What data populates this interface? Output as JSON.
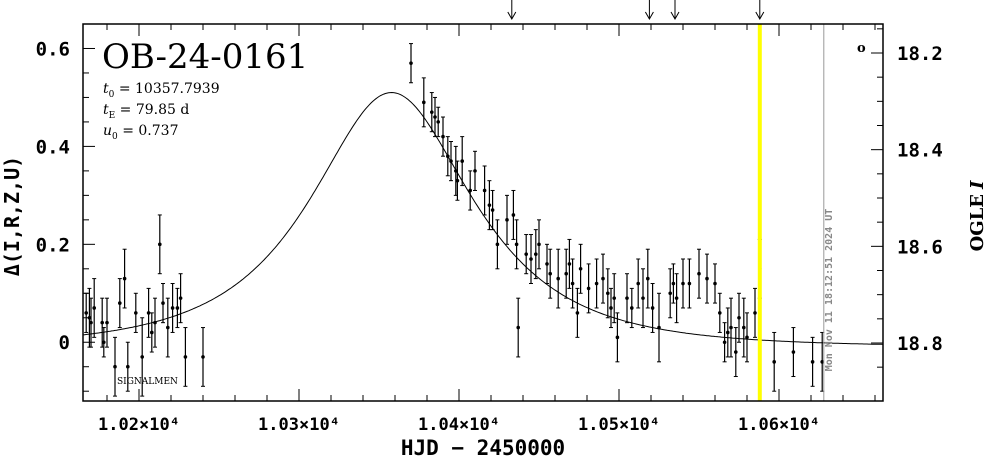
{
  "chart_data": {
    "type": "scatter",
    "title": "OB-24-0161",
    "params": [
      {
        "sym": "t",
        "sub": "0",
        "text": " = 10357.7939"
      },
      {
        "sym": "t",
        "sub": "E",
        "text": " = 79.85 d"
      },
      {
        "sym": "u",
        "sub": "0",
        "text": " = 0.737"
      }
    ],
    "xlabel": "HJD − 2450000",
    "ylabel": "Δ(I,R,Z,U)",
    "ylabel_right": "OGLE",
    "ylabel_right_italic": "I",
    "xlim": [
      10165,
      10665
    ],
    "ylim": [
      -0.12,
      0.65
    ],
    "y2lim": [
      18.92,
      18.14
    ],
    "xticks": [
      10200,
      10300,
      10400,
      10500,
      10600
    ],
    "xtick_labels": [
      "1.02×10⁴",
      "1.03×10⁴",
      "1.04×10⁴",
      "1.05×10⁴",
      "1.06×10⁴"
    ],
    "yticks": [
      0,
      0.2,
      0.4,
      0.6
    ],
    "ytick_labels": [
      "0",
      "0.2",
      "0.4",
      "0.6"
    ],
    "y2ticks": [
      18.2,
      18.4,
      18.6,
      18.8
    ],
    "y2tick_labels": [
      "18.2",
      "18.4",
      "18.6",
      "18.8"
    ],
    "model": {
      "t0": 10357.7939,
      "tE": 79.85,
      "u0": 0.737,
      "baseline_offset": 0.0
    },
    "now_line_x": 10588,
    "now_line_color": "#ffff00",
    "date_line_x": 10628,
    "date_text": "Mon Nov 11 18:12:51 2024 UT",
    "arrows_x": [
      10433,
      10519,
      10535,
      10588
    ],
    "watermark": "SIGNALMEN",
    "corner_mark": "o",
    "points": [
      {
        "x": 10167,
        "y": 0.06,
        "e": 0.04
      },
      {
        "x": 10169,
        "y": 0.05,
        "e": 0.06
      },
      {
        "x": 10170,
        "y": 0.04,
        "e": 0.05
      },
      {
        "x": 10172,
        "y": 0.07,
        "e": 0.06
      },
      {
        "x": 10177,
        "y": 0.04,
        "e": 0.05
      },
      {
        "x": 10178,
        "y": 0.0,
        "e": 0.03
      },
      {
        "x": 10180,
        "y": 0.04,
        "e": 0.05
      },
      {
        "x": 10185,
        "y": -0.05,
        "e": 0.06
      },
      {
        "x": 10188,
        "y": 0.08,
        "e": 0.05
      },
      {
        "x": 10191,
        "y": 0.13,
        "e": 0.06
      },
      {
        "x": 10193,
        "y": -0.05,
        "e": 0.05
      },
      {
        "x": 10198,
        "y": 0.06,
        "e": 0.04
      },
      {
        "x": 10202,
        "y": -0.03,
        "e": 0.08
      },
      {
        "x": 10206,
        "y": 0.06,
        "e": 0.05
      },
      {
        "x": 10208,
        "y": 0.02,
        "e": 0.04
      },
      {
        "x": 10210,
        "y": 0.04,
        "e": 0.05
      },
      {
        "x": 10213,
        "y": 0.2,
        "e": 0.06
      },
      {
        "x": 10215,
        "y": 0.08,
        "e": 0.04
      },
      {
        "x": 10218,
        "y": 0.03,
        "e": 0.06
      },
      {
        "x": 10221,
        "y": 0.07,
        "e": 0.05
      },
      {
        "x": 10224,
        "y": 0.07,
        "e": 0.04
      },
      {
        "x": 10226,
        "y": 0.09,
        "e": 0.05
      },
      {
        "x": 10229,
        "y": -0.03,
        "e": 0.06
      },
      {
        "x": 10240,
        "y": -0.03,
        "e": 0.06
      },
      {
        "x": 10370,
        "y": 0.57,
        "e": 0.04
      },
      {
        "x": 10378,
        "y": 0.49,
        "e": 0.05
      },
      {
        "x": 10383,
        "y": 0.47,
        "e": 0.04
      },
      {
        "x": 10385,
        "y": 0.46,
        "e": 0.04
      },
      {
        "x": 10387,
        "y": 0.45,
        "e": 0.03
      },
      {
        "x": 10390,
        "y": 0.42,
        "e": 0.04
      },
      {
        "x": 10393,
        "y": 0.38,
        "e": 0.04
      },
      {
        "x": 10395,
        "y": 0.37,
        "e": 0.04
      },
      {
        "x": 10398,
        "y": 0.35,
        "e": 0.05
      },
      {
        "x": 10399,
        "y": 0.33,
        "e": 0.04
      },
      {
        "x": 10402,
        "y": 0.37,
        "e": 0.05
      },
      {
        "x": 10407,
        "y": 0.31,
        "e": 0.04
      },
      {
        "x": 10410,
        "y": 0.35,
        "e": 0.04
      },
      {
        "x": 10416,
        "y": 0.31,
        "e": 0.05
      },
      {
        "x": 10419,
        "y": 0.28,
        "e": 0.05
      },
      {
        "x": 10421,
        "y": 0.27,
        "e": 0.04
      },
      {
        "x": 10424,
        "y": 0.2,
        "e": 0.05
      },
      {
        "x": 10430,
        "y": 0.25,
        "e": 0.05
      },
      {
        "x": 10434,
        "y": 0.26,
        "e": 0.05
      },
      {
        "x": 10436,
        "y": 0.2,
        "e": 0.05
      },
      {
        "x": 10437,
        "y": 0.03,
        "e": 0.06
      },
      {
        "x": 10442,
        "y": 0.18,
        "e": 0.04
      },
      {
        "x": 10445,
        "y": 0.17,
        "e": 0.05
      },
      {
        "x": 10448,
        "y": 0.18,
        "e": 0.05
      },
      {
        "x": 10450,
        "y": 0.2,
        "e": 0.05
      },
      {
        "x": 10455,
        "y": 0.16,
        "e": 0.04
      },
      {
        "x": 10457,
        "y": 0.14,
        "e": 0.05
      },
      {
        "x": 10462,
        "y": 0.13,
        "e": 0.06
      },
      {
        "x": 10467,
        "y": 0.14,
        "e": 0.05
      },
      {
        "x": 10469,
        "y": 0.16,
        "e": 0.05
      },
      {
        "x": 10471,
        "y": 0.12,
        "e": 0.05
      },
      {
        "x": 10474,
        "y": 0.06,
        "e": 0.05
      },
      {
        "x": 10476,
        "y": 0.15,
        "e": 0.05
      },
      {
        "x": 10481,
        "y": 0.11,
        "e": 0.05
      },
      {
        "x": 10486,
        "y": 0.12,
        "e": 0.05
      },
      {
        "x": 10490,
        "y": 0.13,
        "e": 0.05
      },
      {
        "x": 10493,
        "y": 0.1,
        "e": 0.05
      },
      {
        "x": 10495,
        "y": 0.07,
        "e": 0.04
      },
      {
        "x": 10497,
        "y": 0.09,
        "e": 0.05
      },
      {
        "x": 10499,
        "y": 0.01,
        "e": 0.05
      },
      {
        "x": 10505,
        "y": 0.09,
        "e": 0.05
      },
      {
        "x": 10508,
        "y": 0.07,
        "e": 0.04
      },
      {
        "x": 10512,
        "y": 0.12,
        "e": 0.05
      },
      {
        "x": 10515,
        "y": 0.09,
        "e": 0.06
      },
      {
        "x": 10518,
        "y": 0.13,
        "e": 0.06
      },
      {
        "x": 10521,
        "y": 0.07,
        "e": 0.05
      },
      {
        "x": 10525,
        "y": 0.03,
        "e": 0.07
      },
      {
        "x": 10532,
        "y": 0.1,
        "e": 0.05
      },
      {
        "x": 10534,
        "y": 0.12,
        "e": 0.04
      },
      {
        "x": 10536,
        "y": 0.09,
        "e": 0.05
      },
      {
        "x": 10540,
        "y": 0.12,
        "e": 0.05
      },
      {
        "x": 10544,
        "y": 0.12,
        "e": 0.05
      },
      {
        "x": 10550,
        "y": 0.14,
        "e": 0.05
      },
      {
        "x": 10555,
        "y": 0.13,
        "e": 0.05
      },
      {
        "x": 10560,
        "y": 0.12,
        "e": 0.04
      },
      {
        "x": 10563,
        "y": 0.06,
        "e": 0.04
      },
      {
        "x": 10566,
        "y": 0.0,
        "e": 0.04
      },
      {
        "x": 10568,
        "y": 0.02,
        "e": 0.05
      },
      {
        "x": 10570,
        "y": 0.03,
        "e": 0.06
      },
      {
        "x": 10573,
        "y": -0.02,
        "e": 0.05
      },
      {
        "x": 10575,
        "y": 0.05,
        "e": 0.05
      },
      {
        "x": 10578,
        "y": 0.03,
        "e": 0.06
      },
      {
        "x": 10580,
        "y": 0.01,
        "e": 0.05
      },
      {
        "x": 10585,
        "y": 0.06,
        "e": 0.05
      },
      {
        "x": 10588,
        "y": 0.15,
        "e": 0.06
      },
      {
        "x": 10597,
        "y": -0.04,
        "e": 0.06
      },
      {
        "x": 10609,
        "y": -0.02,
        "e": 0.05
      },
      {
        "x": 10621,
        "y": -0.04,
        "e": 0.05
      },
      {
        "x": 10627,
        "y": -0.04,
        "e": 0.06
      }
    ]
  }
}
